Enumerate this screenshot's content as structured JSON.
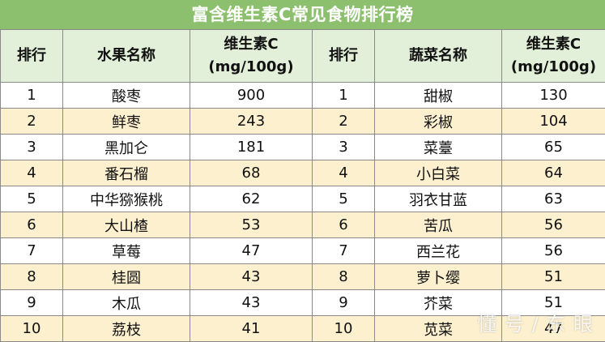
{
  "title": "富含维生素C常见食物排行榜",
  "headers": {
    "rank": "排行",
    "fruit_name": "水果名称",
    "vc_line1": "维生素C",
    "vc_line2": "(mg/100g)",
    "vegetable_name": "蔬菜名称"
  },
  "rows": [
    {
      "fruit_rank": "1",
      "fruit": "酸枣",
      "fruit_vc": "900",
      "veg_rank": "1",
      "veg": "甜椒",
      "veg_vc": "130"
    },
    {
      "fruit_rank": "2",
      "fruit": "鲜枣",
      "fruit_vc": "243",
      "veg_rank": "2",
      "veg": "彩椒",
      "veg_vc": "104"
    },
    {
      "fruit_rank": "3",
      "fruit": "黑加仑",
      "fruit_vc": "181",
      "veg_rank": "3",
      "veg": "菜薹",
      "veg_vc": "65"
    },
    {
      "fruit_rank": "4",
      "fruit": "番石榴",
      "fruit_vc": "68",
      "veg_rank": "4",
      "veg": "小白菜",
      "veg_vc": "64"
    },
    {
      "fruit_rank": "5",
      "fruit": "中华猕猴桃",
      "fruit_vc": "62",
      "veg_rank": "5",
      "veg": "羽衣甘蓝",
      "veg_vc": "63"
    },
    {
      "fruit_rank": "6",
      "fruit": "大山楂",
      "fruit_vc": "53",
      "veg_rank": "6",
      "veg": "苦瓜",
      "veg_vc": "56"
    },
    {
      "fruit_rank": "7",
      "fruit": "草莓",
      "fruit_vc": "47",
      "veg_rank": "7",
      "veg": "西兰花",
      "veg_vc": "56"
    },
    {
      "fruit_rank": "8",
      "fruit": "桂圆",
      "fruit_vc": "43",
      "veg_rank": "8",
      "veg": "萝卜缨",
      "veg_vc": "51"
    },
    {
      "fruit_rank": "9",
      "fruit": "木瓜",
      "fruit_vc": "43",
      "veg_rank": "9",
      "veg": "芥菜",
      "veg_vc": "51"
    },
    {
      "fruit_rank": "10",
      "fruit": "荔枝",
      "fruit_vc": "41",
      "veg_rank": "10",
      "veg": "苋菜",
      "veg_vc": "47"
    }
  ],
  "watermark": "懂 号 / 东 眼"
}
